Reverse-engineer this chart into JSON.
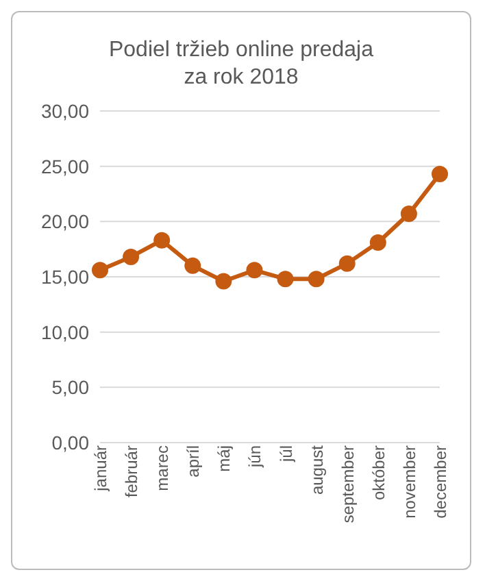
{
  "chart_data": {
    "type": "line",
    "title": "Podiel tržieb online predaja za rok 2018",
    "categories": [
      "január",
      "február",
      "marec",
      "apríl",
      "máj",
      "jún",
      "júl",
      "august",
      "september",
      "október",
      "november",
      "december"
    ],
    "series": [
      {
        "color": "#c55a11",
        "values": [
          15.6,
          16.8,
          18.3,
          16.0,
          14.6,
          15.6,
          14.8,
          14.8,
          16.2,
          18.1,
          20.7,
          24.3
        ]
      }
    ],
    "ylim": [
      0,
      30
    ],
    "yticks": [
      {
        "value": 0,
        "label": "0,00"
      },
      {
        "value": 5,
        "label": "5,00"
      },
      {
        "value": 10,
        "label": "10,00"
      },
      {
        "value": 15,
        "label": "15,00"
      },
      {
        "value": 20,
        "label": "20,00"
      },
      {
        "value": 25,
        "label": "25,00"
      },
      {
        "value": 30,
        "label": "30,00"
      }
    ],
    "grid": "y",
    "marker": "circle",
    "line_style": "solid",
    "legend": false
  }
}
